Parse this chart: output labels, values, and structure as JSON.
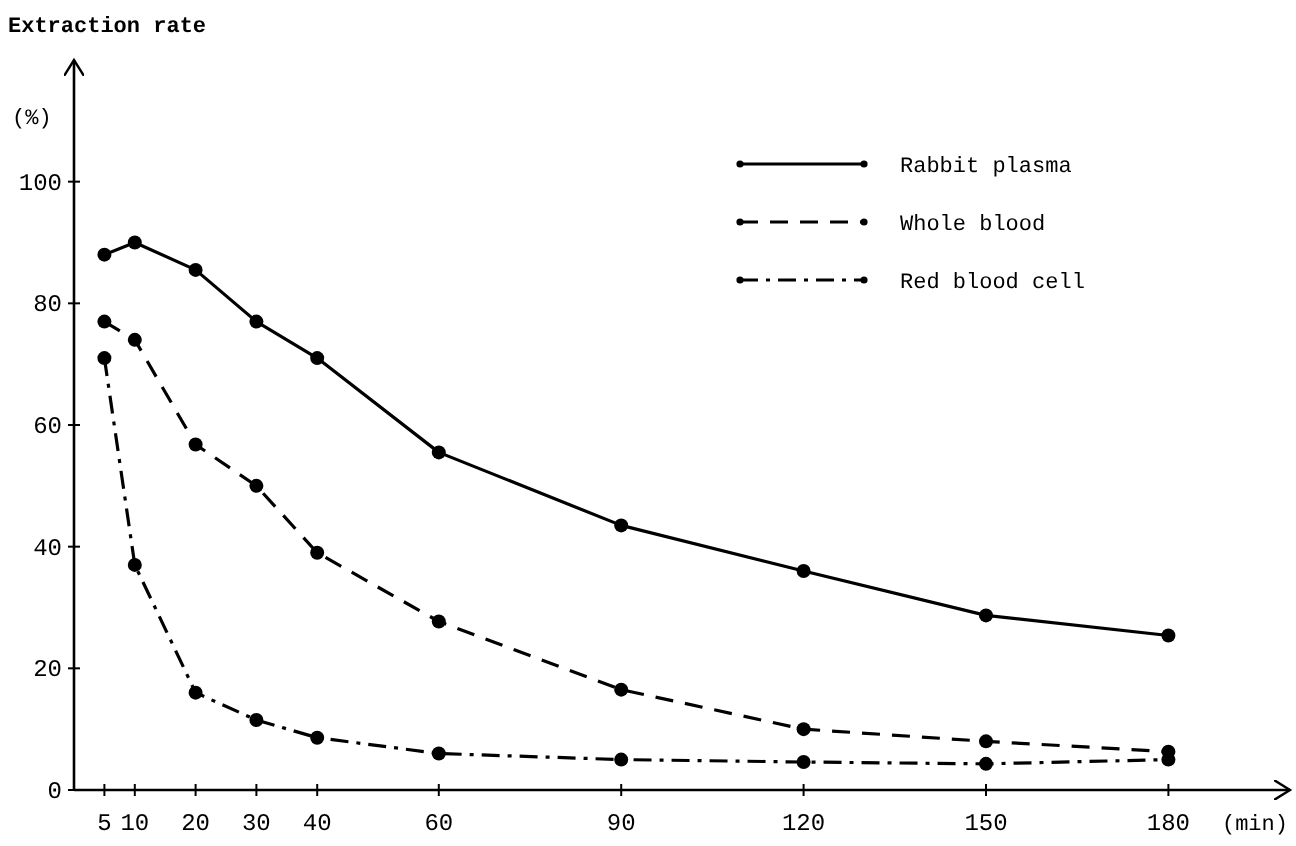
{
  "chart_data": {
    "type": "line",
    "ylabel": "Extraction rate",
    "xlabel": "(min)",
    "annotations": [
      "(%)"
    ],
    "x": [
      5,
      10,
      20,
      30,
      40,
      60,
      90,
      120,
      150,
      180
    ],
    "xlim": [
      0,
      200
    ],
    "xticks": [
      5,
      10,
      20,
      30,
      40,
      60,
      90,
      120,
      150,
      180
    ],
    "ylim": [
      0,
      120
    ],
    "yticks": [
      0,
      20,
      40,
      60,
      80,
      100
    ],
    "grid": false,
    "legend": "top right",
    "marker": "circle",
    "series": [
      {
        "name": "Rabbit plasma",
        "color": "#000000",
        "line_style": "solid",
        "values": [
          88,
          90,
          85.5,
          77,
          71,
          55.5,
          43.5,
          36,
          28.7,
          25.4
        ]
      },
      {
        "name": "Whole blood",
        "color": "#000000",
        "line_style": "dashed",
        "values": [
          77,
          74,
          56.8,
          50,
          39,
          27.7,
          16.5,
          10,
          8,
          6.3
        ]
      },
      {
        "name": "Red blood cell",
        "color": "#000000",
        "line_style": "dashdot",
        "values": [
          71,
          37,
          16,
          11.5,
          8.6,
          6,
          5,
          4.6,
          4.3,
          5
        ]
      }
    ]
  }
}
